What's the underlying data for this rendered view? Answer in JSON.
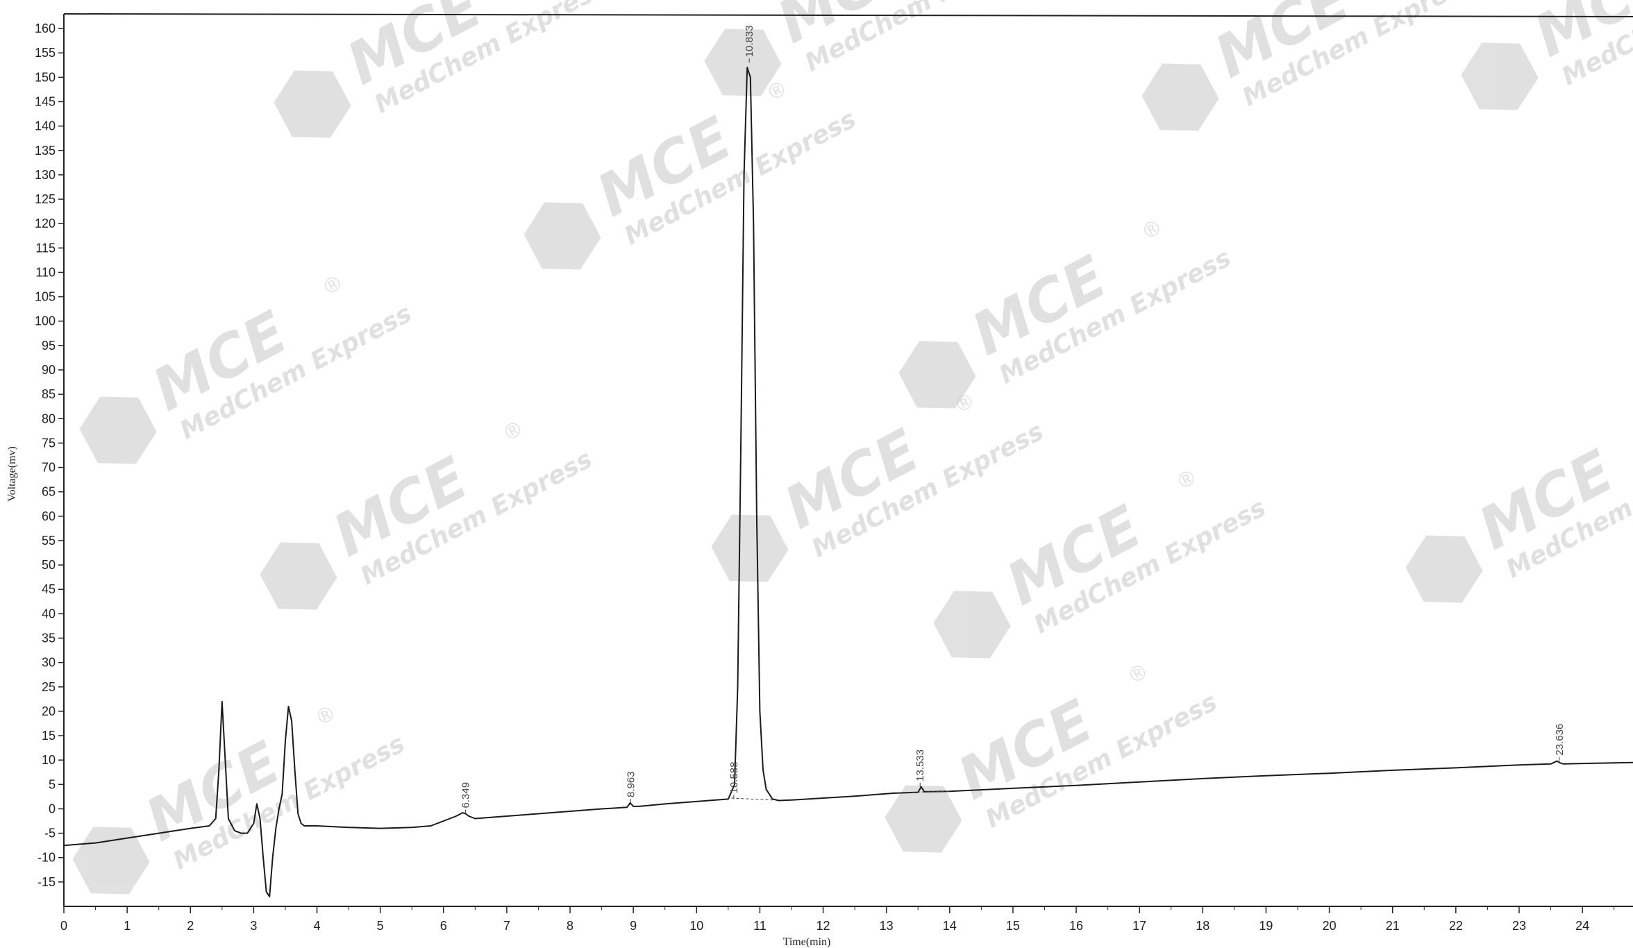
{
  "chart_data": {
    "type": "line",
    "title": "",
    "xlabel": "Time(min)",
    "ylabel": "Voltage(mv)",
    "xlim": [
      0,
      24.8
    ],
    "ylim": [
      -20,
      163
    ],
    "grid": false,
    "x_ticks": [
      0,
      1,
      2,
      3,
      4,
      5,
      6,
      7,
      8,
      9,
      10,
      11,
      12,
      13,
      14,
      15,
      16,
      17,
      18,
      19,
      20,
      21,
      22,
      23,
      24
    ],
    "y_ticks": [
      -15,
      -10,
      -5,
      0,
      5,
      10,
      15,
      20,
      25,
      30,
      35,
      40,
      45,
      50,
      55,
      60,
      65,
      70,
      75,
      80,
      85,
      90,
      95,
      100,
      105,
      110,
      115,
      120,
      125,
      130,
      135,
      140,
      145,
      150,
      155,
      160
    ],
    "series": [
      {
        "color": "#1a1a1a",
        "x": [
          0,
          0.5,
          1.0,
          1.5,
          2.0,
          2.3,
          2.4,
          2.45,
          2.5,
          2.55,
          2.6,
          2.7,
          2.8,
          2.9,
          3.0,
          3.05,
          3.1,
          3.15,
          3.2,
          3.25,
          3.3,
          3.35,
          3.4,
          3.45,
          3.5,
          3.55,
          3.6,
          3.65,
          3.7,
          3.75,
          3.8,
          4.0,
          4.5,
          5.0,
          5.5,
          5.8,
          6.0,
          6.2,
          6.3,
          6.35,
          6.4,
          6.5,
          7.0,
          7.5,
          8.0,
          8.5,
          8.9,
          8.95,
          9.0,
          9.1,
          9.5,
          10.0,
          10.5,
          10.6,
          10.65,
          10.7,
          10.75,
          10.8,
          10.85,
          10.9,
          10.95,
          11.0,
          11.05,
          11.1,
          11.2,
          11.3,
          11.5,
          12.0,
          12.5,
          12.9,
          13.1,
          13.5,
          13.55,
          13.6,
          14.0,
          15.0,
          16.0,
          17.0,
          18.0,
          19.0,
          20.0,
          21.0,
          22.0,
          23.0,
          23.5,
          23.6,
          23.65,
          23.7,
          24.0,
          24.8
        ],
        "y": [
          -7.5,
          -7,
          -6,
          -5,
          -4,
          -3.5,
          -2,
          8,
          22,
          10,
          -2,
          -4.5,
          -5,
          -5,
          -3,
          1,
          -2,
          -10,
          -17,
          -18,
          -10,
          -4,
          0,
          3,
          14,
          21,
          18,
          8,
          -1,
          -3,
          -3.5,
          -3.5,
          -3.8,
          -4,
          -3.8,
          -3.5,
          -2.5,
          -1.5,
          -0.8,
          -1,
          -1.5,
          -2.0,
          -1.5,
          -1,
          -0.5,
          0,
          0.3,
          1.2,
          0.5,
          0.5,
          1,
          1.5,
          2,
          5,
          25,
          75,
          130,
          152,
          150,
          120,
          60,
          20,
          8,
          4,
          2.0,
          1.7,
          1.8,
          2.2,
          2.6,
          3.0,
          3.2,
          3.4,
          4.5,
          3.5,
          3.6,
          4.2,
          4.8,
          5.5,
          6.2,
          6.8,
          7.3,
          7.9,
          8.4,
          9.0,
          9.2,
          9.8,
          9.4,
          9.2,
          9.3,
          9.5
        ]
      }
    ],
    "peak_labels": [
      {
        "x": 6.349,
        "y": -1,
        "text": "6.349"
      },
      {
        "x": 8.96,
        "y": 1.2,
        "text": "8.963"
      },
      {
        "x": 10.588,
        "y": 2,
        "text": "10.588"
      },
      {
        "x": 10.833,
        "y": 153,
        "text": "10.833"
      },
      {
        "x": 13.533,
        "y": 4.5,
        "text": "13.533"
      },
      {
        "x": 23.636,
        "y": 9.8,
        "text": "23.636"
      }
    ]
  },
  "watermark": {
    "brand": "MCE",
    "tagline": "MedChem Express",
    "registered": "®",
    "color": "#c8c8c8"
  }
}
